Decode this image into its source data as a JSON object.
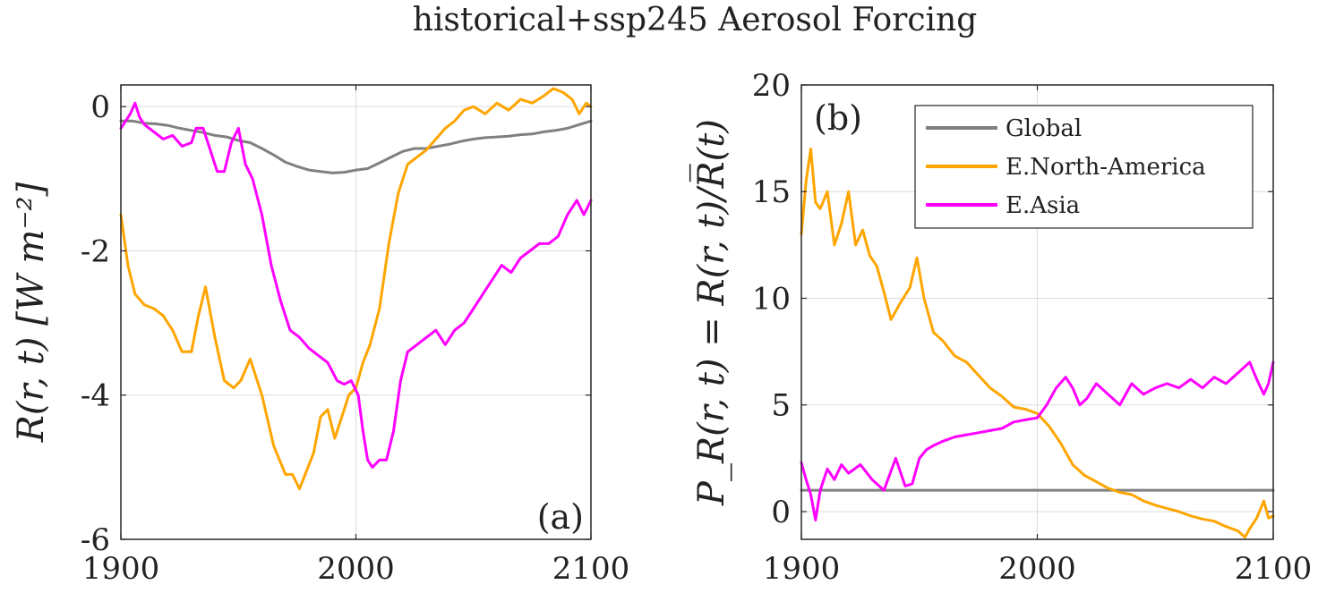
{
  "figure": {
    "title": "historical+ssp245 Aerosol Forcing"
  },
  "colors": {
    "Global": "#808080",
    "E.North-America": "#FFA500",
    "E.Asia": "#FF00FF"
  },
  "chart_data": [
    {
      "type": "line",
      "panel_label": "(a)",
      "title": "",
      "xlabel": "",
      "ylabel": "R(r, t) [W m⁻²]",
      "xlim": [
        1900,
        2100
      ],
      "ylim": [
        -6,
        0.3
      ],
      "xticks": [
        1900,
        2000,
        2100
      ],
      "xtick_labels": [
        "1900",
        "2000",
        "2100"
      ],
      "yticks": [
        0,
        -2,
        -4,
        -6
      ],
      "ytick_labels": [
        "0",
        "-2",
        "-4",
        "-6"
      ],
      "grid": true,
      "series": [
        {
          "name": "Global",
          "x": [
            1900,
            1905,
            1910,
            1915,
            1920,
            1925,
            1930,
            1935,
            1940,
            1945,
            1950,
            1955,
            1960,
            1965,
            1970,
            1975,
            1980,
            1985,
            1990,
            1995,
            2000,
            2005,
            2010,
            2015,
            2020,
            2025,
            2030,
            2035,
            2040,
            2045,
            2050,
            2055,
            2060,
            2065,
            2070,
            2075,
            2080,
            2085,
            2090,
            2095,
            2100
          ],
          "y": [
            -0.2,
            -0.2,
            -0.23,
            -0.24,
            -0.26,
            -0.3,
            -0.33,
            -0.36,
            -0.4,
            -0.42,
            -0.47,
            -0.5,
            -0.58,
            -0.67,
            -0.77,
            -0.83,
            -0.88,
            -0.9,
            -0.92,
            -0.91,
            -0.88,
            -0.86,
            -0.78,
            -0.7,
            -0.62,
            -0.58,
            -0.58,
            -0.55,
            -0.52,
            -0.48,
            -0.45,
            -0.43,
            -0.42,
            -0.41,
            -0.39,
            -0.38,
            -0.35,
            -0.33,
            -0.3,
            -0.25,
            -0.2
          ]
        },
        {
          "name": "E.North-America",
          "x": [
            1900,
            1903,
            1906,
            1910,
            1914,
            1918,
            1922,
            1926,
            1930,
            1933,
            1936,
            1940,
            1944,
            1948,
            1951,
            1955,
            1960,
            1965,
            1970,
            1973,
            1976,
            1979,
            1982,
            1985,
            1988,
            1991,
            1994,
            1997,
            2000,
            2003,
            2006,
            2010,
            2014,
            2018,
            2022,
            2026,
            2030,
            2034,
            2038,
            2042,
            2046,
            2050,
            2055,
            2060,
            2065,
            2070,
            2075,
            2080,
            2084,
            2088,
            2092,
            2095,
            2098,
            2100
          ],
          "y": [
            -1.5,
            -2.2,
            -2.6,
            -2.75,
            -2.8,
            -2.9,
            -3.1,
            -3.4,
            -3.4,
            -2.9,
            -2.5,
            -3.2,
            -3.8,
            -3.9,
            -3.8,
            -3.5,
            -4.0,
            -4.7,
            -5.1,
            -5.1,
            -5.3,
            -5.05,
            -4.8,
            -4.3,
            -4.2,
            -4.6,
            -4.3,
            -4.0,
            -3.9,
            -3.55,
            -3.3,
            -2.8,
            -1.9,
            -1.2,
            -0.8,
            -0.7,
            -0.6,
            -0.45,
            -0.3,
            -0.2,
            -0.05,
            0.0,
            -0.1,
            0.05,
            -0.05,
            0.1,
            0.05,
            0.15,
            0.25,
            0.2,
            0.1,
            -0.1,
            0.05,
            0.0
          ]
        },
        {
          "name": "E.Asia",
          "x": [
            1900,
            1902,
            1904,
            1906,
            1908,
            1910,
            1914,
            1918,
            1922,
            1926,
            1930,
            1932,
            1935,
            1938,
            1941,
            1944,
            1947,
            1950,
            1953,
            1956,
            1960,
            1964,
            1968,
            1972,
            1976,
            1980,
            1984,
            1988,
            1992,
            1995,
            1998,
            2001,
            2003,
            2005,
            2007,
            2010,
            2013,
            2016,
            2019,
            2022,
            2026,
            2030,
            2034,
            2038,
            2042,
            2046,
            2050,
            2054,
            2058,
            2062,
            2066,
            2070,
            2074,
            2078,
            2082,
            2086,
            2090,
            2094,
            2097,
            2100
          ],
          "y": [
            -0.3,
            -0.2,
            -0.1,
            0.05,
            -0.15,
            -0.25,
            -0.35,
            -0.45,
            -0.4,
            -0.55,
            -0.5,
            -0.3,
            -0.3,
            -0.6,
            -0.9,
            -0.9,
            -0.5,
            -0.3,
            -0.8,
            -1.0,
            -1.5,
            -2.2,
            -2.7,
            -3.1,
            -3.2,
            -3.35,
            -3.45,
            -3.55,
            -3.8,
            -3.85,
            -3.8,
            -4.0,
            -4.5,
            -4.9,
            -5.0,
            -4.9,
            -4.9,
            -4.5,
            -3.8,
            -3.4,
            -3.3,
            -3.2,
            -3.1,
            -3.3,
            -3.1,
            -3.0,
            -2.8,
            -2.6,
            -2.4,
            -2.2,
            -2.3,
            -2.1,
            -2.0,
            -1.9,
            -1.9,
            -1.8,
            -1.5,
            -1.3,
            -1.5,
            -1.3
          ]
        }
      ]
    },
    {
      "type": "line",
      "panel_label": "(b)",
      "title": "",
      "xlabel": "",
      "ylabel": "P_R(r, t) = R(r, t)/R̅(t)",
      "xlim": [
        1900,
        2100
      ],
      "ylim": [
        -1.3,
        20
      ],
      "xticks": [
        1900,
        2000,
        2100
      ],
      "xtick_labels": [
        "1900",
        "2000",
        "2100"
      ],
      "yticks": [
        0,
        5,
        10,
        15,
        20
      ],
      "ytick_labels": [
        "0",
        "5",
        "10",
        "15",
        "20"
      ],
      "grid": true,
      "legend_position": "top-right",
      "series": [
        {
          "name": "Global",
          "x": [
            1900,
            2100
          ],
          "y": [
            1.0,
            1.0
          ]
        },
        {
          "name": "E.North-America",
          "x": [
            1900,
            1902,
            1904,
            1906,
            1908,
            1911,
            1914,
            1917,
            1920,
            1923,
            1926,
            1929,
            1932,
            1935,
            1938,
            1942,
            1946,
            1949,
            1952,
            1956,
            1960,
            1965,
            1970,
            1975,
            1980,
            1985,
            1990,
            1995,
            2000,
            2005,
            2010,
            2015,
            2020,
            2025,
            2030,
            2035,
            2040,
            2045,
            2050,
            2055,
            2060,
            2065,
            2070,
            2075,
            2080,
            2085,
            2088,
            2090,
            2093,
            2096,
            2098,
            2100
          ],
          "y": [
            13.0,
            15.5,
            17.0,
            14.5,
            14.2,
            15.0,
            12.5,
            13.5,
            15.0,
            12.5,
            13.2,
            12.0,
            11.5,
            10.3,
            9.0,
            9.8,
            10.5,
            11.9,
            10.0,
            8.4,
            8.0,
            7.3,
            7.0,
            6.4,
            5.8,
            5.4,
            4.9,
            4.8,
            4.6,
            4.0,
            3.2,
            2.2,
            1.7,
            1.4,
            1.1,
            0.9,
            0.8,
            0.5,
            0.3,
            0.15,
            0.0,
            -0.2,
            -0.35,
            -0.45,
            -0.7,
            -0.9,
            -1.2,
            -0.8,
            -0.3,
            0.5,
            -0.3,
            -0.2
          ]
        },
        {
          "name": "E.Asia",
          "x": [
            1900,
            1902,
            1904,
            1906,
            1908,
            1911,
            1914,
            1917,
            1920,
            1925,
            1930,
            1935,
            1940,
            1944,
            1947,
            1950,
            1953,
            1956,
            1960,
            1965,
            1970,
            1975,
            1980,
            1985,
            1990,
            1995,
            2000,
            2004,
            2008,
            2012,
            2015,
            2018,
            2021,
            2025,
            2030,
            2035,
            2040,
            2045,
            2050,
            2055,
            2060,
            2065,
            2070,
            2075,
            2080,
            2085,
            2088,
            2090,
            2093,
            2096,
            2098,
            2100
          ],
          "y": [
            2.3,
            1.5,
            0.8,
            -0.4,
            1.0,
            2.0,
            1.5,
            2.2,
            1.8,
            2.2,
            1.5,
            1.0,
            2.5,
            1.2,
            1.3,
            2.5,
            2.9,
            3.1,
            3.3,
            3.5,
            3.6,
            3.7,
            3.8,
            3.9,
            4.2,
            4.3,
            4.4,
            5.0,
            5.8,
            6.3,
            5.8,
            5.0,
            5.3,
            6.0,
            5.5,
            5.0,
            6.0,
            5.5,
            5.8,
            6.0,
            5.8,
            6.2,
            5.8,
            6.3,
            6.0,
            6.5,
            6.8,
            7.0,
            6.2,
            5.5,
            6.0,
            7.0
          ]
        }
      ]
    }
  ]
}
